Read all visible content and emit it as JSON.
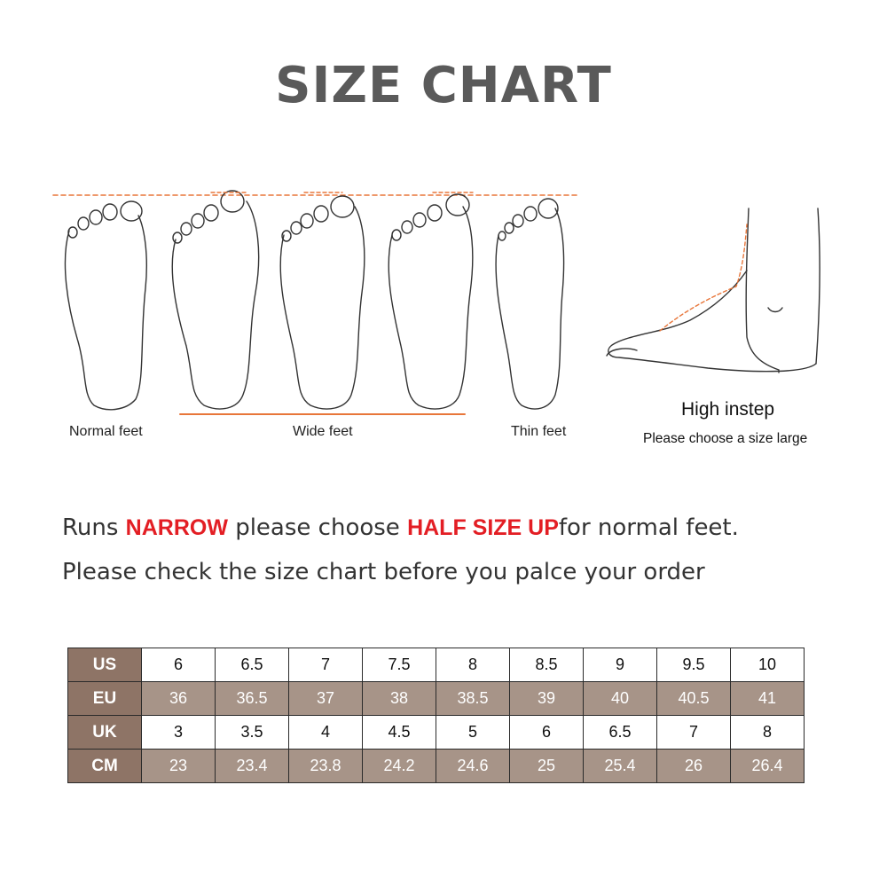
{
  "title": "SIZE CHART",
  "foot_labels": {
    "normal": "Normal feet",
    "wide": "Wide feet",
    "thin": "Thin feet"
  },
  "instep": {
    "title": "High instep",
    "note": "Please choose a size large"
  },
  "notice": {
    "runs": "Runs",
    "narrow": "NARROW",
    "please_choose": "please choose",
    "half_size_up": "HALF SIZE UP",
    "for_normal": "for normal feet.",
    "line2": "Please check the size chart before you palce your order"
  },
  "colors": {
    "header_bg": "#8e7466",
    "dark_row_bg": "#a79488",
    "accent_red": "#e31e24",
    "dash_orange": "#e8763a"
  },
  "size_table": {
    "rows": [
      {
        "label": "US",
        "values": [
          "6",
          "6.5",
          "7",
          "7.5",
          "8",
          "8.5",
          "9",
          "9.5",
          "10"
        ]
      },
      {
        "label": "EU",
        "values": [
          "36",
          "36.5",
          "37",
          "38",
          "38.5",
          "39",
          "40",
          "40.5",
          "41"
        ]
      },
      {
        "label": "UK",
        "values": [
          "3",
          "3.5",
          "4",
          "4.5",
          "5",
          "6",
          "6.5",
          "7",
          "8"
        ]
      },
      {
        "label": "CM",
        "values": [
          "23",
          "23.4",
          "23.8",
          "24.2",
          "24.6",
          "25",
          "25.4",
          "26",
          "26.4"
        ]
      }
    ]
  }
}
